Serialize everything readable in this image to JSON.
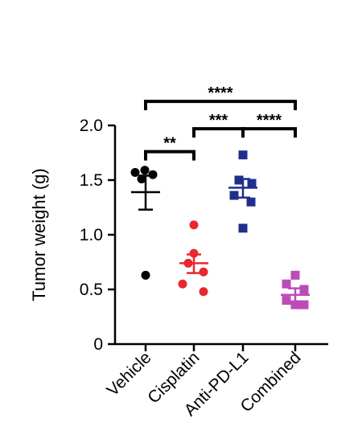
{
  "chart_data": {
    "type": "scatter",
    "title": "",
    "xlabel": "",
    "ylabel": "Tumor weight (g)",
    "ylim": [
      0,
      2.0
    ],
    "yticks": [
      {
        "value": 0,
        "label": "0"
      },
      {
        "value": 0.5,
        "label": "0.5"
      },
      {
        "value": 1.0,
        "label": "1.0"
      },
      {
        "value": 1.5,
        "label": "1.5"
      },
      {
        "value": 2.0,
        "label": "2.0"
      }
    ],
    "grid": false,
    "legend": "none",
    "categories": [
      "Vehicle",
      "Cisplatin",
      "Anti-PD-L1",
      "Combined"
    ],
    "series": [
      {
        "category": "Vehicle",
        "marker": "circle",
        "color": "#000000",
        "points": [
          1.57,
          1.59,
          1.55,
          1.51,
          0.63
        ],
        "mean": 1.39,
        "sem": [
          1.23,
          1.54
        ]
      },
      {
        "category": "Cisplatin",
        "marker": "circle",
        "color": "#e8282d",
        "points": [
          1.09,
          0.83,
          0.74,
          0.66,
          0.55,
          0.48
        ],
        "mean": 0.74,
        "sem": [
          0.65,
          0.82
        ]
      },
      {
        "category": "Anti-PD-L1",
        "marker": "square",
        "color": "#1f2f8c",
        "points": [
          1.73,
          1.5,
          1.47,
          1.36,
          1.3,
          1.06
        ],
        "mean": 1.43,
        "sem": [
          1.34,
          1.51
        ]
      },
      {
        "category": "Combined",
        "marker": "square",
        "color": "#bb4bb6",
        "points": [
          0.63,
          0.55,
          0.5,
          0.4,
          0.36,
          0.36
        ],
        "mean": 0.45,
        "sem": [
          0.39,
          0.51
        ]
      }
    ],
    "significance": [
      {
        "from": "Vehicle",
        "to": "Cisplatin",
        "label": "**",
        "level": 1.76
      },
      {
        "from": "Cisplatin",
        "to": "Anti-PD-L1",
        "label": "***",
        "level": 1.97
      },
      {
        "from": "Anti-PD-L1",
        "to": "Combined",
        "label": "****",
        "level": 1.97
      },
      {
        "from": "Vehicle",
        "to": "Combined",
        "label": "****",
        "level": 2.22
      }
    ]
  }
}
